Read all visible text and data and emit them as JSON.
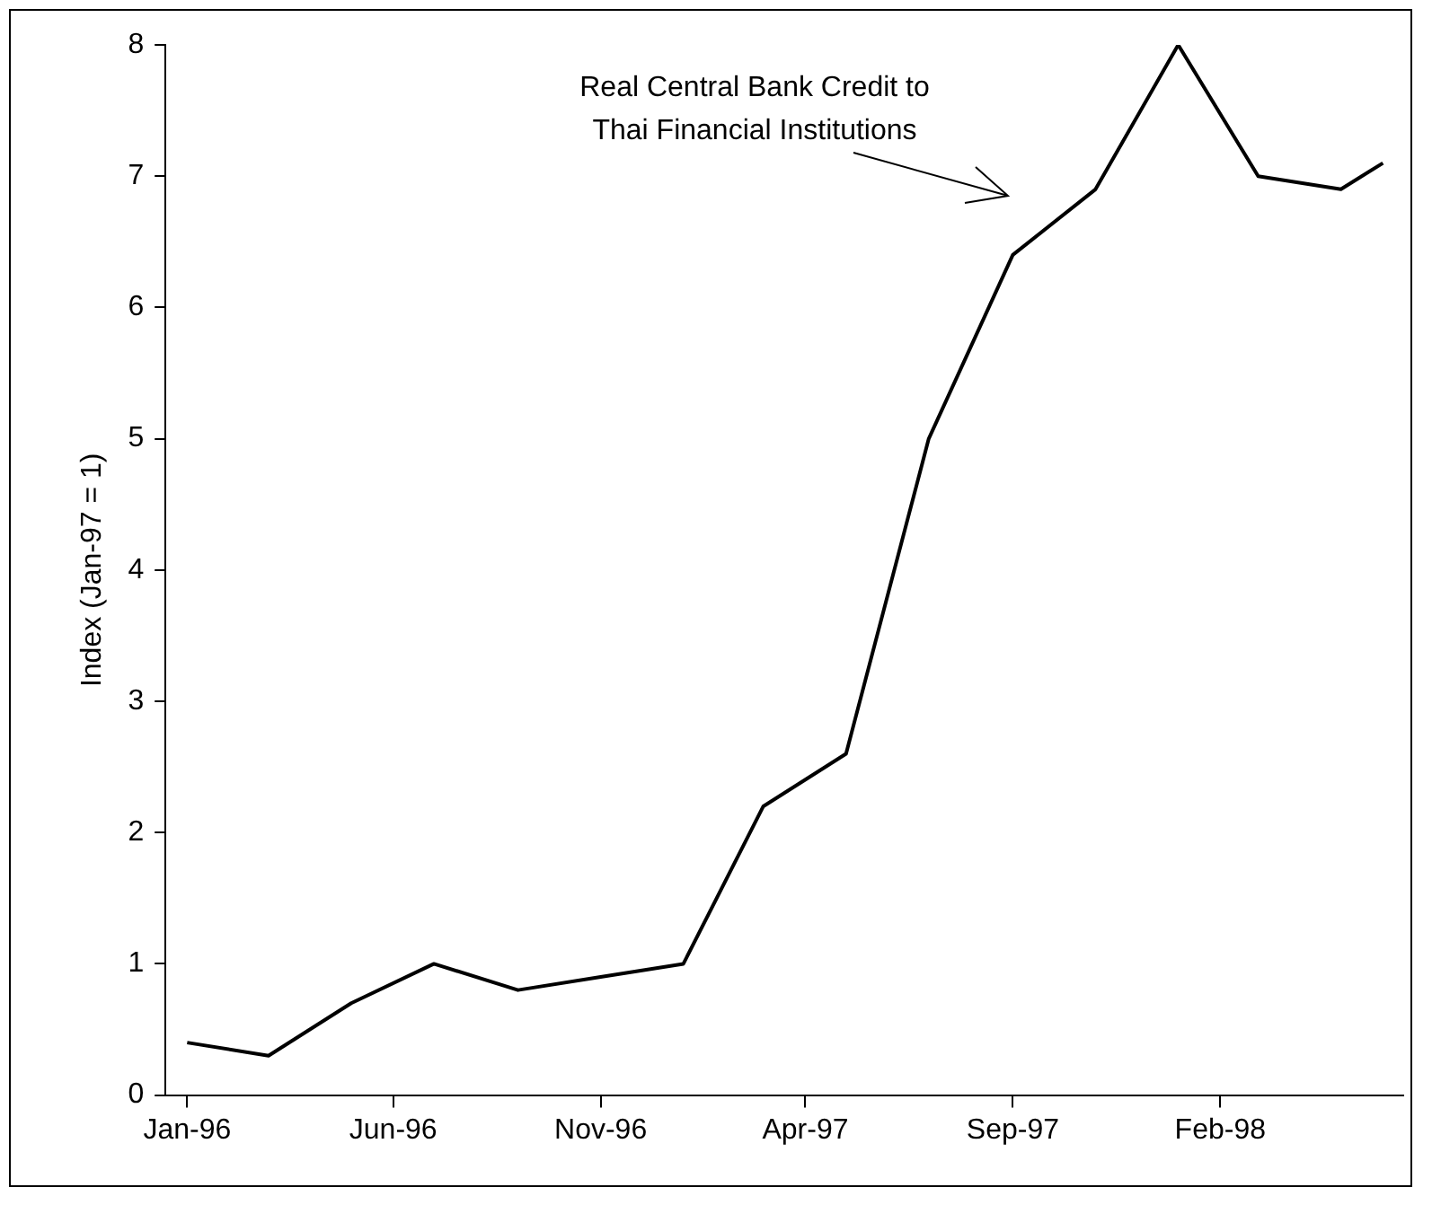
{
  "chart_data": {
    "type": "line",
    "ylabel": "Index (Jan-97 = 1)",
    "x": [
      "1996-01",
      "1996-03",
      "1996-05",
      "1996-07",
      "1996-09",
      "1996-11",
      "1997-01",
      "1997-03",
      "1997-05",
      "1997-07",
      "1997-09",
      "1997-11",
      "1998-01",
      "1998-03",
      "1998-05",
      "1998-06"
    ],
    "series": [
      {
        "color": "#000000",
        "values": [
          0.4,
          0.3,
          0.7,
          1.0,
          0.8,
          0.9,
          1.0,
          2.2,
          2.6,
          5.0,
          6.4,
          6.9,
          8.0,
          7.0,
          6.9,
          7.1
        ]
      }
    ],
    "xlim": [
      "1995-12-16",
      "1998-06-16"
    ],
    "xticks": [
      {
        "value": "1996-01",
        "label": "Jan-96"
      },
      {
        "value": "1996-06",
        "label": "Jun-96"
      },
      {
        "value": "1996-11",
        "label": "Nov-96"
      },
      {
        "value": "1997-04",
        "label": "Apr-97"
      },
      {
        "value": "1997-09",
        "label": "Sep-97"
      },
      {
        "value": "1998-02",
        "label": "Feb-98"
      }
    ],
    "ylim": [
      0,
      8
    ],
    "yticks": [
      0,
      1,
      2,
      3,
      4,
      5,
      6,
      7,
      8
    ],
    "annotations": [
      "Real Central Bank Credit to\nThai Financial Institutions"
    ],
    "grid": false,
    "legend": false,
    "marker": "none",
    "line_style": "solid"
  }
}
